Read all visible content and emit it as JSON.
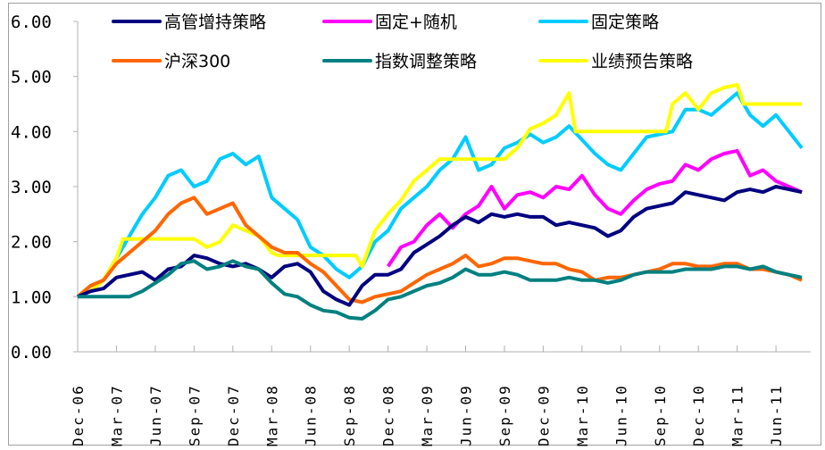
{
  "chart_data": {
    "type": "line",
    "title": "",
    "xlabel": "",
    "ylabel": "",
    "ylim": [
      0,
      6
    ],
    "yticks": [
      "0.00",
      "1.00",
      "2.00",
      "3.00",
      "4.00",
      "5.00",
      "6.00"
    ],
    "xticks": [
      "Dec-06",
      "Mar-07",
      "Jun-07",
      "Sep-07",
      "Dec-07",
      "Mar-08",
      "Jun-08",
      "Sep-08",
      "Dec-08",
      "Mar-09",
      "Jun-09",
      "Sep-09",
      "Dec-09",
      "Mar-10",
      "Jun-10",
      "Sep-10",
      "Dec-10",
      "Mar-11",
      "Jun-11"
    ],
    "x_unit": "months since Dec-06",
    "xlim": [
      0,
      56.5
    ],
    "grid": false,
    "legend_position": "top",
    "series": [
      {
        "name": "高管增持策略",
        "color": "#000080",
        "x": [
          0,
          1,
          2,
          3,
          4,
          5,
          6,
          7,
          8,
          9,
          10,
          11,
          12,
          13,
          14,
          15,
          16,
          17,
          18,
          19,
          20,
          21,
          22,
          23,
          24,
          25,
          26,
          27,
          28,
          29,
          30,
          31,
          32,
          33,
          34,
          35,
          36,
          37,
          38,
          39,
          40,
          41,
          42,
          43,
          44,
          45,
          46,
          47,
          48,
          49,
          50,
          51,
          52,
          53,
          54,
          55,
          56
        ],
        "y": [
          1.0,
          1.1,
          1.15,
          1.35,
          1.4,
          1.45,
          1.3,
          1.5,
          1.55,
          1.75,
          1.7,
          1.6,
          1.55,
          1.6,
          1.5,
          1.35,
          1.55,
          1.6,
          1.45,
          1.1,
          0.95,
          0.85,
          1.2,
          1.4,
          1.4,
          1.5,
          1.8,
          1.95,
          2.1,
          2.3,
          2.45,
          2.35,
          2.5,
          2.45,
          2.5,
          2.45,
          2.45,
          2.3,
          2.35,
          2.3,
          2.25,
          2.1,
          2.2,
          2.45,
          2.6,
          2.65,
          2.7,
          2.9,
          2.85,
          2.8,
          2.75,
          2.9,
          2.95,
          2.9,
          3.0,
          2.95,
          2.9
        ]
      },
      {
        "name": "固定+随机",
        "color": "#ff00ff",
        "x": [
          24,
          25,
          26,
          27,
          28,
          29,
          30,
          31,
          32,
          33,
          34,
          35,
          36,
          37,
          38,
          39,
          40,
          41,
          42,
          43,
          44,
          45,
          46,
          47,
          48,
          49,
          50,
          51,
          52,
          53,
          54,
          55,
          56
        ],
        "y": [
          1.55,
          1.9,
          2.0,
          2.3,
          2.5,
          2.25,
          2.5,
          2.65,
          3.0,
          2.6,
          2.85,
          2.9,
          2.8,
          3.0,
          2.95,
          3.2,
          2.85,
          2.6,
          2.5,
          2.75,
          2.95,
          3.05,
          3.1,
          3.4,
          3.3,
          3.5,
          3.6,
          3.65,
          3.2,
          3.3,
          3.1,
          3.0,
          2.9
        ]
      },
      {
        "name": "固定策略",
        "color": "#00ccff",
        "x": [
          0,
          1,
          2,
          3,
          4,
          5,
          6,
          7,
          8,
          9,
          10,
          11,
          12,
          13,
          14,
          15,
          16,
          17,
          18,
          19,
          20,
          21,
          22,
          23,
          24,
          25,
          26,
          27,
          28,
          29,
          30,
          31,
          32,
          33,
          34,
          35,
          36,
          37,
          38,
          39,
          40,
          41,
          42,
          43,
          44,
          45,
          46,
          47,
          48,
          49,
          50,
          51,
          52,
          53,
          54,
          55,
          56
        ],
        "y": [
          1.0,
          1.2,
          1.3,
          1.7,
          2.1,
          2.5,
          2.8,
          3.2,
          3.3,
          3.0,
          3.1,
          3.5,
          3.6,
          3.4,
          3.55,
          2.8,
          2.6,
          2.4,
          1.9,
          1.75,
          1.5,
          1.35,
          1.55,
          2.0,
          2.2,
          2.6,
          2.8,
          3.0,
          3.3,
          3.5,
          3.9,
          3.3,
          3.4,
          3.7,
          3.8,
          3.95,
          3.8,
          3.9,
          4.1,
          3.85,
          3.6,
          3.4,
          3.3,
          3.6,
          3.9,
          3.95,
          4.0,
          4.4,
          4.4,
          4.3,
          4.5,
          4.7,
          4.3,
          4.1,
          4.3,
          4.0,
          3.7
        ]
      },
      {
        "name": "沪深300",
        "color": "#ff6600",
        "x": [
          0,
          1,
          2,
          3,
          4,
          5,
          6,
          7,
          8,
          9,
          10,
          11,
          12,
          13,
          14,
          15,
          16,
          17,
          18,
          19,
          20,
          21,
          22,
          23,
          24,
          25,
          26,
          27,
          28,
          29,
          30,
          31,
          32,
          33,
          34,
          35,
          36,
          37,
          38,
          39,
          40,
          41,
          42,
          43,
          44,
          45,
          46,
          47,
          48,
          49,
          50,
          51,
          52,
          53,
          54,
          55,
          56
        ],
        "y": [
          1.0,
          1.2,
          1.3,
          1.6,
          1.8,
          2.0,
          2.2,
          2.5,
          2.7,
          2.8,
          2.5,
          2.6,
          2.7,
          2.3,
          2.1,
          1.9,
          1.8,
          1.8,
          1.6,
          1.45,
          1.2,
          0.95,
          0.9,
          1.0,
          1.05,
          1.1,
          1.25,
          1.4,
          1.5,
          1.6,
          1.75,
          1.55,
          1.6,
          1.7,
          1.7,
          1.65,
          1.6,
          1.6,
          1.5,
          1.45,
          1.3,
          1.35,
          1.35,
          1.4,
          1.45,
          1.5,
          1.6,
          1.6,
          1.55,
          1.55,
          1.6,
          1.6,
          1.5,
          1.5,
          1.45,
          1.4,
          1.3
        ]
      },
      {
        "name": "指数调整策略",
        "color": "#008080",
        "x": [
          0,
          1,
          2,
          3,
          4,
          5,
          6,
          7,
          8,
          9,
          10,
          11,
          12,
          13,
          14,
          15,
          16,
          17,
          18,
          19,
          20,
          21,
          22,
          23,
          24,
          25,
          26,
          27,
          28,
          29,
          30,
          31,
          32,
          33,
          34,
          35,
          36,
          37,
          38,
          39,
          40,
          41,
          42,
          43,
          44,
          45,
          46,
          47,
          48,
          49,
          50,
          51,
          52,
          53,
          54,
          55,
          56
        ],
        "y": [
          1.0,
          1.0,
          1.0,
          1.0,
          1.0,
          1.1,
          1.25,
          1.4,
          1.6,
          1.65,
          1.5,
          1.55,
          1.65,
          1.55,
          1.5,
          1.25,
          1.05,
          1.0,
          0.85,
          0.75,
          0.72,
          0.62,
          0.6,
          0.75,
          0.95,
          1.0,
          1.1,
          1.2,
          1.25,
          1.35,
          1.5,
          1.4,
          1.4,
          1.45,
          1.4,
          1.3,
          1.3,
          1.3,
          1.35,
          1.3,
          1.3,
          1.25,
          1.3,
          1.4,
          1.45,
          1.45,
          1.45,
          1.5,
          1.5,
          1.5,
          1.55,
          1.55,
          1.5,
          1.55,
          1.45,
          1.4,
          1.35
        ]
      },
      {
        "name": "业绩预告策略",
        "color": "#ffff00",
        "x": [
          0,
          1,
          2,
          3,
          3.5,
          4,
          5,
          6,
          7,
          8,
          9,
          10,
          11,
          12,
          13,
          14,
          15,
          15.5,
          16,
          17,
          18,
          19,
          20,
          21,
          21.5,
          22,
          23,
          24,
          25,
          26,
          27,
          28,
          29,
          30,
          31,
          32,
          33,
          34,
          35,
          36,
          37,
          38,
          38.5,
          39,
          40,
          41,
          42,
          43,
          44,
          45,
          45.5,
          46,
          47,
          48,
          49,
          50,
          51,
          51.5,
          52,
          53,
          54,
          55,
          56
        ],
        "y": [
          1.0,
          1.1,
          1.3,
          1.7,
          2.05,
          2.05,
          2.05,
          2.05,
          2.05,
          2.05,
          2.05,
          1.9,
          2.0,
          2.3,
          2.2,
          2.1,
          1.8,
          1.75,
          1.75,
          1.75,
          1.75,
          1.75,
          1.75,
          1.75,
          1.75,
          1.55,
          2.2,
          2.5,
          2.75,
          3.1,
          3.3,
          3.5,
          3.5,
          3.5,
          3.5,
          3.5,
          3.5,
          3.7,
          4.05,
          4.15,
          4.3,
          4.7,
          4.0,
          4.0,
          4.0,
          4.0,
          4.0,
          4.0,
          4.0,
          4.0,
          4.0,
          4.5,
          4.7,
          4.4,
          4.7,
          4.8,
          4.85,
          4.5,
          4.5,
          4.5,
          4.5,
          4.5,
          4.5
        ]
      }
    ]
  }
}
